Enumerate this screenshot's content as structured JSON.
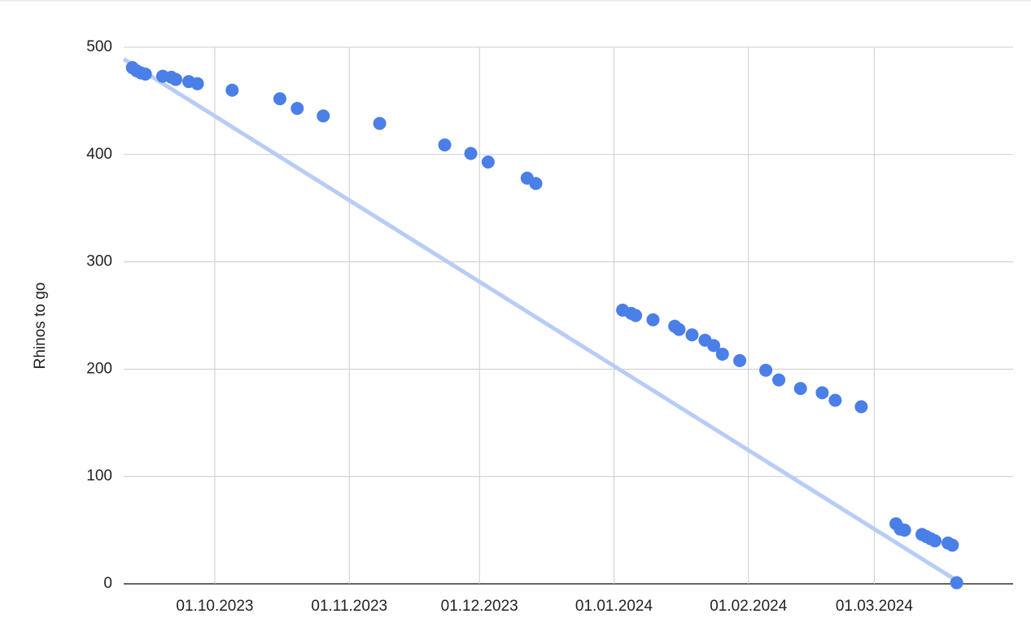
{
  "chart_data": {
    "type": "scatter",
    "y_axis_label": "Rhinos to go",
    "x": [
      "12.09.2023",
      "13.09.2023",
      "14.09.2023",
      "15.09.2023",
      "19.09.2023",
      "21.09.2023",
      "22.09.2023",
      "25.09.2023",
      "27.09.2023",
      "05.10.2023",
      "16.10.2023",
      "20.10.2023",
      "26.10.2023",
      "08.11.2023",
      "23.11.2023",
      "29.11.2023",
      "03.12.2023",
      "12.12.2023",
      "14.12.2023",
      "03.01.2024",
      "05.01.2024",
      "06.01.2024",
      "10.01.2024",
      "15.01.2024",
      "16.01.2024",
      "19.01.2024",
      "22.01.2024",
      "24.01.2024",
      "26.01.2024",
      "30.01.2024",
      "05.02.2024",
      "08.02.2024",
      "13.02.2024",
      "18.02.2024",
      "21.02.2024",
      "27.02.2024",
      "06.03.2024",
      "07.03.2024",
      "08.03.2024",
      "12.03.2024",
      "13.03.2024",
      "14.03.2024",
      "15.03.2024",
      "18.03.2024",
      "19.03.2024",
      "20.03.2024"
    ],
    "series": [
      {
        "color": "#4a7fe8",
        "values": [
          481,
          478,
          476,
          475,
          473,
          472,
          470,
          468,
          466,
          460,
          452,
          443,
          436,
          429,
          409,
          401,
          393,
          378,
          373,
          255,
          252,
          250,
          246,
          240,
          237,
          232,
          227,
          222,
          214,
          208,
          199,
          190,
          182,
          178,
          171,
          165,
          56,
          51,
          50,
          46,
          44,
          42,
          40,
          38,
          36,
          1
        ]
      }
    ],
    "trendline": {
      "color": "#b7cdf6",
      "x": [
        "10.09.2023",
        "20.03.2024"
      ],
      "values": [
        489,
        3
      ]
    },
    "xlim": [
      "10.09.2023",
      "02.04.2024"
    ],
    "xticks": [
      "01.10.2023",
      "01.11.2023",
      "01.12.2023",
      "01.01.2024",
      "01.02.2024",
      "01.03.2024"
    ],
    "ylim": [
      0,
      500
    ],
    "yticks": [
      0,
      100,
      200,
      300,
      400,
      500
    ],
    "grid": true
  }
}
